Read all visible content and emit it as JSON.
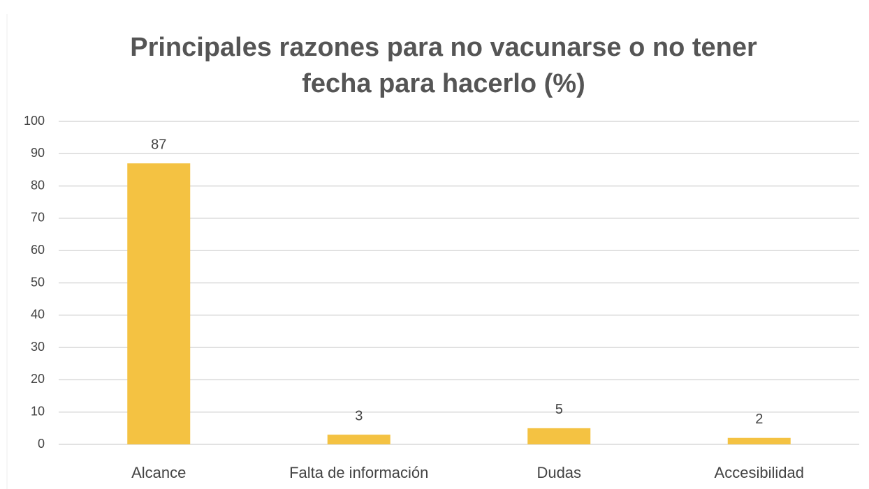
{
  "chart_data": {
    "type": "bar",
    "title": "Principales razones para no vacunarse o no tener fecha para hacerlo (%)",
    "categories": [
      "Alcance",
      "Falta de información",
      "Dudas",
      "Accesibilidad"
    ],
    "values": [
      87,
      3,
      5,
      2
    ],
    "color": "#f4c242",
    "ylim": [
      0,
      100
    ],
    "yticks": [
      0,
      10,
      20,
      30,
      40,
      50,
      60,
      70,
      80,
      90,
      100
    ],
    "grid": true
  }
}
